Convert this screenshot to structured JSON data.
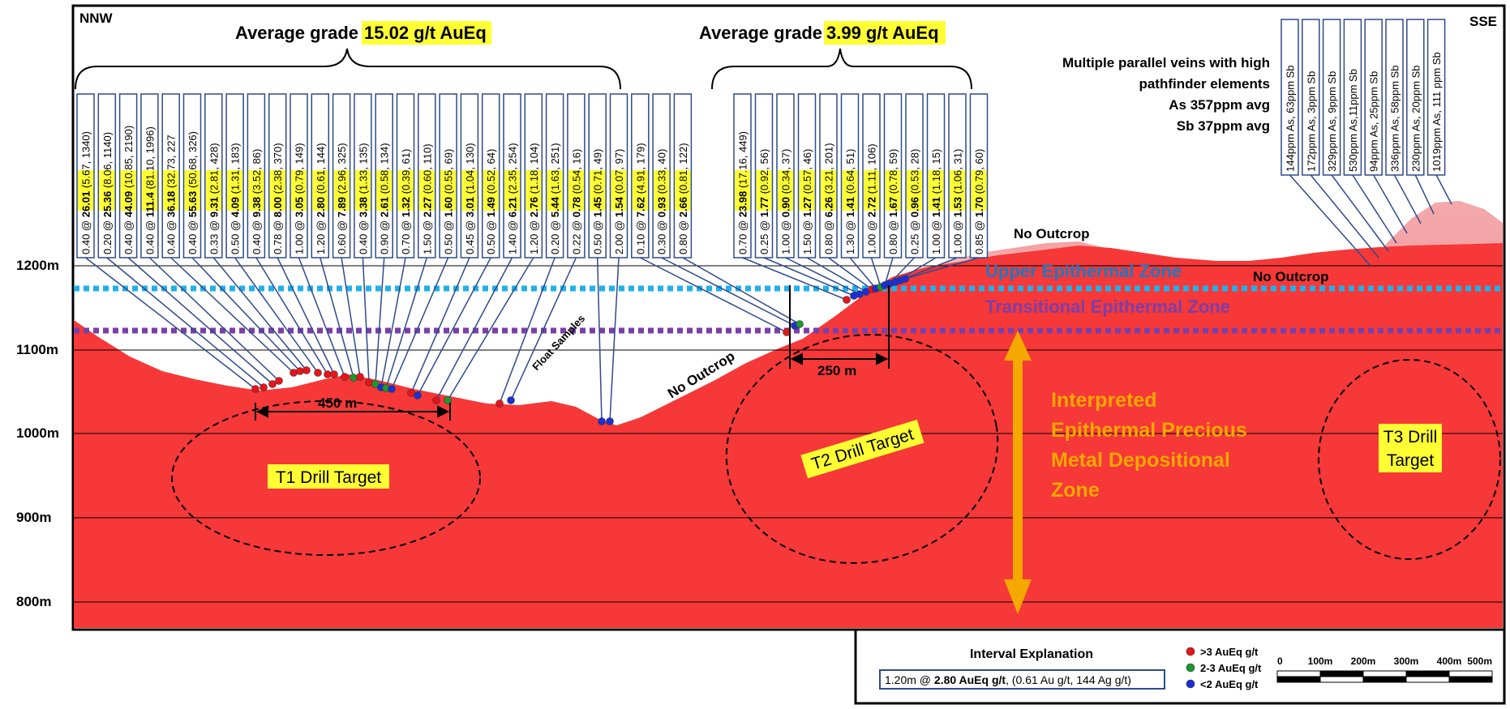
{
  "directions": {
    "left": "NNW",
    "right": "SSE"
  },
  "elevation_labels": [
    "1200m",
    "1100m",
    "1000m",
    "900m",
    "800m"
  ],
  "group_t1": {
    "prefix": "Average grade ",
    "value": "15.02 g/t AuEq"
  },
  "group_t2": {
    "prefix": "Average grade ",
    "value": "3.99 g/t AuEq"
  },
  "intervals_gold": [
    {
      "width": "0.40",
      "grade": "26.01",
      "detail": "(5.67, 1340)"
    },
    {
      "width": "0.20",
      "grade": "25.36",
      "detail": "(8.06, 1140)"
    },
    {
      "width": "0.40",
      "grade": "44.09",
      "detail": "(10.85, 2190)"
    },
    {
      "width": "0.40",
      "grade": "111.4",
      "detail": "(81.10, 1996)"
    },
    {
      "width": "0.40",
      "grade": "36.18",
      "detail": "(32.73, 227"
    },
    {
      "width": "0.40",
      "grade": "55.63",
      "detail": "(50.68, 326)"
    },
    {
      "width": "0.33",
      "grade": "9.31",
      "detail": "(2.81, 428)"
    },
    {
      "width": "0.50",
      "grade": "4.09",
      "detail": "(1.31, 183)"
    },
    {
      "width": "0.40",
      "grade": "9.38",
      "detail": "(3.52, 86)"
    },
    {
      "width": "0.78",
      "grade": "8.00",
      "detail": "(2.38, 370)"
    },
    {
      "width": "1.00",
      "grade": "3.05",
      "detail": "(0.79, 149)"
    },
    {
      "width": "1.20",
      "grade": "2.80",
      "detail": "(0.61, 144)"
    },
    {
      "width": "0.60",
      "grade": "7.89",
      "detail": "(2.96, 325)"
    },
    {
      "width": "0.40",
      "grade": "3.38",
      "detail": "(1.33, 135)"
    },
    {
      "width": "0.90",
      "grade": "2.61",
      "detail": "(0.58, 134)"
    },
    {
      "width": "0.70",
      "grade": "1.32",
      "detail": "(0.39, 61)"
    },
    {
      "width": "1.50",
      "grade": "2.27",
      "detail": "(0.60, 110)"
    },
    {
      "width": "0.50",
      "grade": "1.60",
      "detail": "(0.55, 69)"
    },
    {
      "width": "0.45",
      "grade": "3.01",
      "detail": "(1.04, 130)"
    },
    {
      "width": "0.50",
      "grade": "1.49",
      "detail": "(0.52, 64)"
    },
    {
      "width": "1.40",
      "grade": "6.21",
      "detail": "(2.35, 254)"
    },
    {
      "width": "1.20",
      "grade": "2.76",
      "detail": "(1.18, 104)"
    },
    {
      "width": "0.20",
      "grade": "5.44",
      "detail": "(1.63, 251)"
    },
    {
      "width": "0.22",
      "grade": "0.78",
      "detail": "(0.54, 16)"
    },
    {
      "width": "0.50",
      "grade": "1.45",
      "detail": "(0.71, 49)"
    },
    {
      "width": "2.00",
      "grade": "1.54",
      "detail": "(0.07, 97)"
    },
    {
      "width": "0.10",
      "grade": "7.62",
      "detail": "(4.91, 179)"
    },
    {
      "width": "0.30",
      "grade": "0.93",
      "detail": "(0.33, 40)"
    },
    {
      "width": "0.80",
      "grade": "2.66",
      "detail": "(0.81, 122)"
    },
    {
      "width": "0.70",
      "grade": "23.98",
      "detail": "(17.16, 449)"
    },
    {
      "width": "0.25",
      "grade": "1.77",
      "detail": "(0.92, 56)"
    },
    {
      "width": "1.00",
      "grade": "0.90",
      "detail": "(0.34, 37)"
    },
    {
      "width": "1.50",
      "grade": "1.27",
      "detail": "(0.57, 46)"
    },
    {
      "width": "0.80",
      "grade": "6.26",
      "detail": "(3.21, 201)"
    },
    {
      "width": "1.30",
      "grade": "1.41",
      "detail": "(0.64, 51)"
    },
    {
      "width": "1.00",
      "grade": "2.72",
      "detail": "(1.11, 106)"
    },
    {
      "width": "0.80",
      "grade": "1.67",
      "detail": "(0.78, 59)"
    },
    {
      "width": "0.25",
      "grade": "0.96",
      "detail": "(0.53, 28)"
    },
    {
      "width": "1.00",
      "grade": "1.41",
      "detail": "(1.18, 15)"
    },
    {
      "width": "1.00",
      "grade": "1.53",
      "detail": "(1.06, 31)"
    },
    {
      "width": "0.85",
      "grade": "1.70",
      "detail": "(0.79, 60)"
    }
  ],
  "intervals_sb": [
    "144ppm As, 63ppm Sb",
    "172ppm As, 3ppm Sb",
    "329ppm As, 9ppm Sb",
    "530ppm As,11ppm Sb",
    "94ppm As, 25ppm Sb",
    "336ppm As, 58ppm Sb",
    "230ppm As, 20ppm Sb",
    "1019ppm As, 111 ppm Sb"
  ],
  "pathfinder_note": [
    "Multiple parallel veins with high",
    "pathfinder elements",
    "As 357ppm avg",
    "Sb 37ppm avg"
  ],
  "zones": {
    "upper": "Upper Epithermal Zone",
    "transitional": "Transitional Epithermal Zone"
  },
  "no_outcrop": [
    "No Outcrop",
    "No Outcrop",
    "No Outcrop"
  ],
  "float_samples": "Float Samples",
  "distances": {
    "t1": "450 m",
    "t2": "250 m"
  },
  "targets": {
    "t1": "T1 Drill Target",
    "t2": "T2 Drill Target",
    "t3_line1": "T3 Drill",
    "t3_line2": "Target"
  },
  "interpreted": [
    "Interpreted",
    "Epithermal Precious",
    "Metal Depositional",
    "Zone"
  ],
  "legend": {
    "title": "Interval Explanation",
    "example_prefix": "1.20m @ ",
    "example_bold": "2.80 AuEq g/t",
    "example_suffix": ", (0.61 Au g/t, 144 Ag g/t)",
    "dots": [
      {
        "label": ">3 AuEq g/t",
        "color": "#e8141a"
      },
      {
        "label": "2-3 AuEq g/t",
        "color": "#1a9a2e"
      },
      {
        "label": "<2 AuEq g/t",
        "color": "#1a2fd6"
      }
    ],
    "scale": [
      "0",
      "100m",
      "200m",
      "300m",
      "400m",
      "500m"
    ]
  },
  "colors": {
    "terrain": "#f63838",
    "terrain_light": "#f5a0a3",
    "upper_line": "#21b0e9",
    "transitional_line": "#7b3fa8",
    "upper_text": "#1f78c0",
    "transitional_text": "#7b3fa8",
    "highlight": "#ffff33",
    "box_border": "#2f4a8a",
    "arrow": "#f5a800",
    "interp_text": "#f5a800"
  }
}
